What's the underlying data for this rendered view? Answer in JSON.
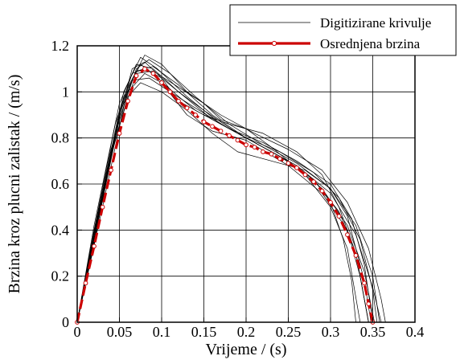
{
  "chart_data": {
    "type": "line",
    "title": "",
    "xlabel": "Vrijeme / (s)",
    "ylabel": "Brzina kroz plucni zalistak / (m/s)",
    "xlim": [
      0,
      0.4
    ],
    "ylim": [
      0,
      1.2
    ],
    "xticks": [
      "0",
      "0.05",
      "0.1",
      "0.15",
      "0.2",
      "0.25",
      "0.3",
      "0.35",
      "0.4"
    ],
    "yticks": [
      "0",
      "0.2",
      "0.4",
      "0.6",
      "0.8",
      "1",
      "1.2"
    ],
    "grid": true,
    "legend_position": "top-right",
    "series": [
      {
        "name": "Digitizirane krivulje",
        "color": "#000000",
        "style": "thin-solid",
        "curves": [
          [
            [
              0,
              0
            ],
            [
              0.02,
              0.38
            ],
            [
              0.045,
              0.82
            ],
            [
              0.065,
              1.1
            ],
            [
              0.08,
              1.13
            ],
            [
              0.1,
              1.06
            ],
            [
              0.13,
              0.97
            ],
            [
              0.16,
              0.88
            ],
            [
              0.2,
              0.8
            ],
            [
              0.25,
              0.7
            ],
            [
              0.29,
              0.58
            ],
            [
              0.32,
              0.42
            ],
            [
              0.34,
              0.22
            ],
            [
              0.352,
              0
            ]
          ],
          [
            [
              0,
              0
            ],
            [
              0.02,
              0.42
            ],
            [
              0.05,
              0.95
            ],
            [
              0.07,
              1.12
            ],
            [
              0.09,
              1.1
            ],
            [
              0.12,
              1.0
            ],
            [
              0.15,
              0.92
            ],
            [
              0.19,
              0.82
            ],
            [
              0.24,
              0.72
            ],
            [
              0.28,
              0.62
            ],
            [
              0.31,
              0.48
            ],
            [
              0.33,
              0.3
            ],
            [
              0.345,
              0
            ]
          ],
          [
            [
              0,
              0
            ],
            [
              0.025,
              0.45
            ],
            [
              0.055,
              1.0
            ],
            [
              0.075,
              1.15
            ],
            [
              0.095,
              1.1
            ],
            [
              0.13,
              0.98
            ],
            [
              0.17,
              0.86
            ],
            [
              0.22,
              0.76
            ],
            [
              0.26,
              0.68
            ],
            [
              0.3,
              0.56
            ],
            [
              0.33,
              0.38
            ],
            [
              0.35,
              0.15
            ],
            [
              0.36,
              0
            ]
          ],
          [
            [
              0,
              0
            ],
            [
              0.02,
              0.4
            ],
            [
              0.05,
              0.9
            ],
            [
              0.065,
              1.05
            ],
            [
              0.085,
              1.06
            ],
            [
              0.11,
              1.0
            ],
            [
              0.14,
              0.93
            ],
            [
              0.18,
              0.84
            ],
            [
              0.22,
              0.78
            ],
            [
              0.26,
              0.7
            ],
            [
              0.3,
              0.6
            ],
            [
              0.325,
              0.45
            ],
            [
              0.34,
              0.25
            ],
            [
              0.35,
              0
            ]
          ],
          [
            [
              0,
              0
            ],
            [
              0.015,
              0.3
            ],
            [
              0.04,
              0.75
            ],
            [
              0.06,
              1.0
            ],
            [
              0.08,
              1.08
            ],
            [
              0.1,
              1.04
            ],
            [
              0.13,
              0.9
            ],
            [
              0.16,
              0.83
            ],
            [
              0.2,
              0.79
            ],
            [
              0.25,
              0.68
            ],
            [
              0.29,
              0.56
            ],
            [
              0.32,
              0.4
            ],
            [
              0.335,
              0.2
            ],
            [
              0.345,
              0
            ]
          ],
          [
            [
              0,
              0
            ],
            [
              0.03,
              0.5
            ],
            [
              0.06,
              1.02
            ],
            [
              0.08,
              1.16
            ],
            [
              0.1,
              1.12
            ],
            [
              0.13,
              1.0
            ],
            [
              0.17,
              0.9
            ],
            [
              0.21,
              0.82
            ],
            [
              0.25,
              0.75
            ],
            [
              0.29,
              0.66
            ],
            [
              0.32,
              0.52
            ],
            [
              0.345,
              0.32
            ],
            [
              0.36,
              0.1
            ],
            [
              0.365,
              0
            ]
          ],
          [
            [
              0,
              0
            ],
            [
              0.02,
              0.36
            ],
            [
              0.045,
              0.8
            ],
            [
              0.07,
              1.08
            ],
            [
              0.09,
              1.09
            ],
            [
              0.12,
              1.02
            ],
            [
              0.15,
              0.95
            ],
            [
              0.17,
              0.88
            ],
            [
              0.2,
              0.84
            ],
            [
              0.23,
              0.76
            ],
            [
              0.27,
              0.64
            ],
            [
              0.3,
              0.5
            ],
            [
              0.32,
              0.32
            ],
            [
              0.335,
              0
            ]
          ],
          [
            [
              0,
              0
            ],
            [
              0.025,
              0.44
            ],
            [
              0.05,
              0.88
            ],
            [
              0.07,
              1.1
            ],
            [
              0.085,
              1.14
            ],
            [
              0.11,
              1.08
            ],
            [
              0.14,
              0.98
            ],
            [
              0.18,
              0.86
            ],
            [
              0.22,
              0.77
            ],
            [
              0.26,
              0.69
            ],
            [
              0.3,
              0.58
            ],
            [
              0.33,
              0.42
            ],
            [
              0.35,
              0.2
            ],
            [
              0.358,
              0
            ]
          ],
          [
            [
              0,
              0
            ],
            [
              0.02,
              0.34
            ],
            [
              0.04,
              0.72
            ],
            [
              0.06,
              0.98
            ],
            [
              0.075,
              1.04
            ],
            [
              0.1,
              1.0
            ],
            [
              0.13,
              0.92
            ],
            [
              0.16,
              0.82
            ],
            [
              0.19,
              0.74
            ],
            [
              0.23,
              0.7
            ],
            [
              0.27,
              0.66
            ],
            [
              0.3,
              0.58
            ],
            [
              0.32,
              0.46
            ],
            [
              0.34,
              0.18
            ],
            [
              0.348,
              0
            ]
          ],
          [
            [
              0,
              0
            ],
            [
              0.02,
              0.4
            ],
            [
              0.045,
              0.86
            ],
            [
              0.065,
              1.08
            ],
            [
              0.08,
              1.1
            ],
            [
              0.1,
              1.06
            ],
            [
              0.12,
              0.96
            ],
            [
              0.15,
              0.9
            ],
            [
              0.18,
              0.86
            ],
            [
              0.22,
              0.82
            ],
            [
              0.26,
              0.74
            ],
            [
              0.29,
              0.64
            ],
            [
              0.31,
              0.5
            ],
            [
              0.33,
              0.3
            ],
            [
              0.345,
              0
            ]
          ],
          [
            [
              0,
              0
            ],
            [
              0.025,
              0.46
            ],
            [
              0.055,
              0.98
            ],
            [
              0.075,
              1.12
            ],
            [
              0.095,
              1.06
            ],
            [
              0.12,
              0.98
            ],
            [
              0.14,
              0.92
            ],
            [
              0.17,
              0.86
            ],
            [
              0.2,
              0.8
            ],
            [
              0.24,
              0.74
            ],
            [
              0.28,
              0.65
            ],
            [
              0.31,
              0.54
            ],
            [
              0.335,
              0.36
            ],
            [
              0.35,
              0.14
            ],
            [
              0.355,
              0
            ]
          ],
          [
            [
              0,
              0
            ],
            [
              0.02,
              0.38
            ],
            [
              0.05,
              0.92
            ],
            [
              0.07,
              1.09
            ],
            [
              0.09,
              1.11
            ],
            [
              0.12,
              1.03
            ],
            [
              0.16,
              0.9
            ],
            [
              0.2,
              0.8
            ],
            [
              0.24,
              0.72
            ],
            [
              0.28,
              0.62
            ],
            [
              0.3,
              0.52
            ],
            [
              0.315,
              0.36
            ],
            [
              0.325,
              0.18
            ],
            [
              0.33,
              0
            ]
          ]
        ]
      },
      {
        "name": "Osrednjena brzina",
        "color": "#cc0000",
        "style": "thick-dashed-with-markers",
        "points": [
          [
            0,
            0
          ],
          [
            0.01,
            0.17
          ],
          [
            0.02,
            0.33
          ],
          [
            0.03,
            0.5
          ],
          [
            0.04,
            0.66
          ],
          [
            0.05,
            0.82
          ],
          [
            0.06,
            0.96
          ],
          [
            0.07,
            1.07
          ],
          [
            0.08,
            1.1
          ],
          [
            0.09,
            1.08
          ],
          [
            0.1,
            1.04
          ],
          [
            0.11,
            1.0
          ],
          [
            0.12,
            0.96
          ],
          [
            0.13,
            0.93
          ],
          [
            0.14,
            0.9
          ],
          [
            0.15,
            0.87
          ],
          [
            0.16,
            0.85
          ],
          [
            0.17,
            0.83
          ],
          [
            0.18,
            0.81
          ],
          [
            0.19,
            0.79
          ],
          [
            0.2,
            0.77
          ],
          [
            0.21,
            0.76
          ],
          [
            0.22,
            0.74
          ],
          [
            0.23,
            0.73
          ],
          [
            0.24,
            0.71
          ],
          [
            0.25,
            0.69
          ],
          [
            0.26,
            0.67
          ],
          [
            0.27,
            0.64
          ],
          [
            0.28,
            0.61
          ],
          [
            0.29,
            0.57
          ],
          [
            0.3,
            0.52
          ],
          [
            0.31,
            0.46
          ],
          [
            0.32,
            0.38
          ],
          [
            0.33,
            0.29
          ],
          [
            0.34,
            0.17
          ],
          [
            0.345,
            0.08
          ],
          [
            0.35,
            0
          ]
        ]
      }
    ]
  }
}
